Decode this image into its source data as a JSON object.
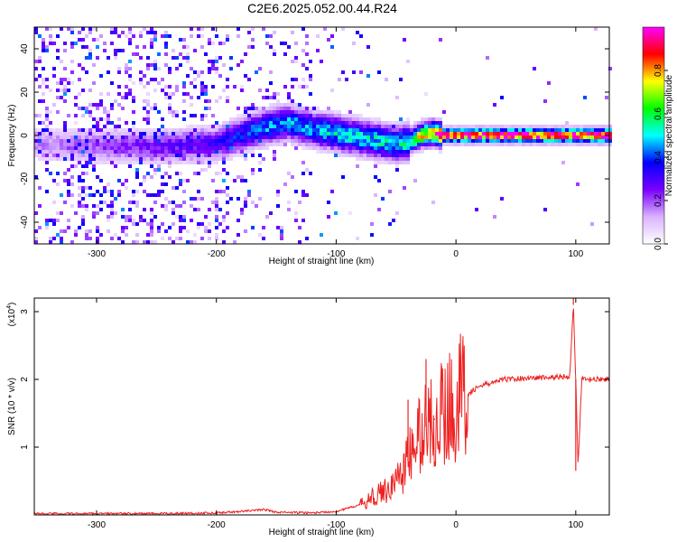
{
  "title": "C2E6.2025.052.00.44.R24",
  "chart_data": [
    {
      "type": "heatmap",
      "xlabel": "Height of straight line (km)",
      "ylabel": "Frequency (Hz)",
      "xlim": [
        -352,
        128
      ],
      "ylim": [
        -50,
        50
      ],
      "xticks": [
        -300,
        -200,
        -100,
        0,
        100
      ],
      "yticks": [
        -40,
        -20,
        0,
        20,
        40
      ],
      "colorbar": {
        "label": "Normalized spectral amplitude",
        "range": [
          0,
          1
        ],
        "ticks": [
          "0.0",
          "0.2",
          "0.4",
          "0.6",
          "0.8"
        ],
        "tick_values": [
          0,
          0.2,
          0.4,
          0.6,
          0.8
        ],
        "colors": [
          "#ffffff",
          "#d9b3ff",
          "#7a00ff",
          "#0000ff",
          "#00ffff",
          "#00ff00",
          "#ffff00",
          "#ff0000",
          "#ff00ff"
        ]
      },
      "ridge": {
        "x": [
          -352,
          -300,
          -250,
          -200,
          -190,
          -170,
          -150,
          -140,
          -120,
          -100,
          -80,
          -60,
          -50,
          -40,
          -30,
          -20,
          -10,
          0,
          128
        ],
        "y": [
          -4,
          -5,
          -5,
          -4,
          -2,
          2,
          5,
          6,
          3,
          1,
          -1,
          -3,
          -4,
          -3,
          0,
          1,
          0,
          0,
          0
        ],
        "peak_amplitude": [
          0.15,
          0.2,
          0.25,
          0.3,
          0.35,
          0.4,
          0.45,
          0.45,
          0.45,
          0.5,
          0.5,
          0.5,
          0.5,
          0.55,
          0.7,
          0.8,
          0.9,
          0.95,
          0.95
        ]
      }
    },
    {
      "type": "line",
      "xlabel": "Height of straight line (km)",
      "ylabel": "SNR (10 * v/v)",
      "scale_label": "(x10",
      "scale_exp": "4",
      "scale_close": ")",
      "xlim": [
        -352,
        128
      ],
      "ylim": [
        0,
        3.2
      ],
      "xticks": [
        -300,
        -200,
        -100,
        0,
        100
      ],
      "yticks": [
        1,
        2,
        3
      ],
      "color": "#ee2222",
      "series": [
        {
          "x": [
            -352,
            -250,
            -200,
            -180,
            -160,
            -150,
            -120,
            -100,
            -80,
            -60,
            -50,
            -40,
            -30,
            -20,
            -10,
            0,
            20,
            40,
            60,
            80,
            95,
            98,
            100,
            102,
            105,
            128
          ],
          "y": [
            0.02,
            0.02,
            0.03,
            0.05,
            0.08,
            0.04,
            0.03,
            0.05,
            0.15,
            0.35,
            0.5,
            0.8,
            1.2,
            1.4,
            1.5,
            1.7,
            1.9,
            2.0,
            2.02,
            2.03,
            2.05,
            3.1,
            2.0,
            0.7,
            2.0,
            2.0
          ]
        }
      ],
      "spikes": [
        {
          "x": -40,
          "y": 1.7
        },
        {
          "x": -25,
          "y": 2.3
        },
        {
          "x": -18,
          "y": 1.4
        },
        {
          "x": -12,
          "y": 2.2
        },
        {
          "x": -5,
          "y": 1.8
        },
        {
          "x": 98,
          "y": 3.2
        },
        {
          "x": 100,
          "y": 0.65
        }
      ]
    }
  ]
}
